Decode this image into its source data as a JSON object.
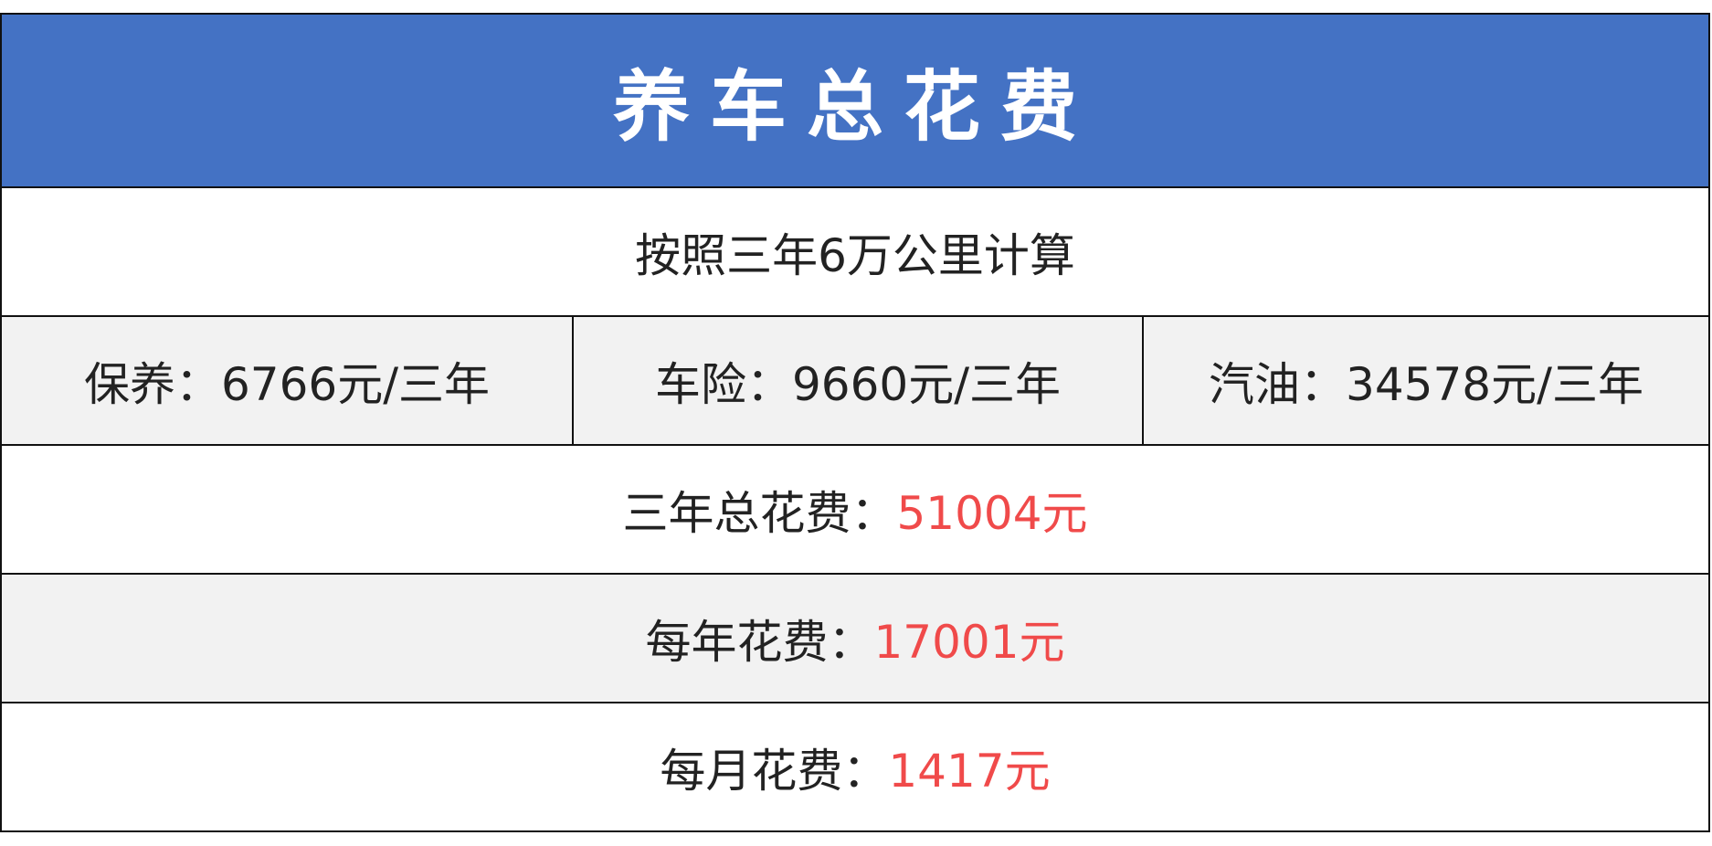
{
  "title": "养车总花费",
  "basis": "按照三年6万公里计算",
  "items": [
    {
      "label": "保养：",
      "value": "6766元/三年"
    },
    {
      "label": "车险：",
      "value": "9660元/三年"
    },
    {
      "label": "汽油：",
      "value": "34578元/三年"
    }
  ],
  "totals": [
    {
      "label": "三年总花费：",
      "value": "51004元"
    },
    {
      "label": "每年花费：",
      "value": "17001元"
    },
    {
      "label": "每月花费：",
      "value": "1417元"
    }
  ],
  "colors": {
    "header": "#4472c4",
    "highlight": "#f04a4a",
    "alt_row": "#f2f2f2"
  }
}
